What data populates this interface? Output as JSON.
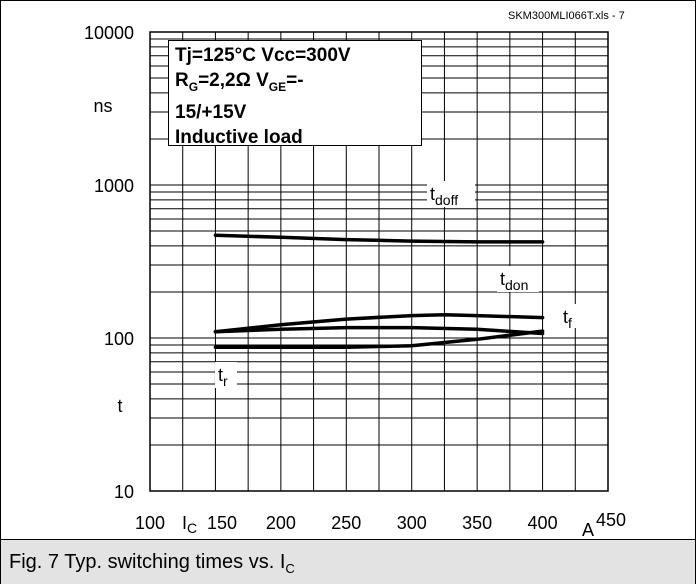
{
  "header": {
    "file_label": "SKM300MLI066T.xls - 7"
  },
  "caption": {
    "prefix": "Fig. 7 Typ. switching times vs. I",
    "sub": "C"
  },
  "legend": {
    "line1": "Tj=125°C   Vcc=300V",
    "line2_a": "R",
    "line2_a_sub": "G",
    "line2_b": "=2,2Ω     V",
    "line2_b_sub": "GE",
    "line2_c": "=-",
    "line3": "15/+15V",
    "line4": "Inductive load"
  },
  "chart_data": {
    "type": "line",
    "x_scale": "linear",
    "y_scale": "log",
    "xlim": [
      100,
      450
    ],
    "ylim": [
      10,
      10000
    ],
    "x_ticks": [
      "100",
      "150",
      "200",
      "250",
      "300",
      "350",
      "400",
      "450"
    ],
    "y_ticks": [
      "10",
      "100",
      "1000",
      "10000"
    ],
    "xlabel": "I",
    "xlabel_sub": "C",
    "x_unit": "A",
    "ylabel": "t",
    "y_unit": "ns",
    "grid": true,
    "series": [
      {
        "name": "t",
        "name_sub": "doff",
        "x": [
          150,
          200,
          250,
          300,
          350,
          400
        ],
        "y": [
          470,
          455,
          440,
          430,
          425,
          425
        ]
      },
      {
        "name": "t",
        "name_sub": "don",
        "x": [
          150,
          200,
          250,
          300,
          325,
          350,
          400
        ],
        "y": [
          110,
          122,
          133,
          140,
          142,
          140,
          136
        ]
      },
      {
        "name": "t",
        "name_sub": "f",
        "x": [
          150,
          200,
          250,
          300,
          350,
          400
        ],
        "y": [
          110,
          114,
          117,
          117,
          114,
          107
        ]
      },
      {
        "name": "t",
        "name_sub": "r",
        "x": [
          150,
          200,
          250,
          300,
          350,
          400
        ],
        "y": [
          87,
          87,
          87,
          89,
          98,
          111
        ]
      }
    ]
  }
}
